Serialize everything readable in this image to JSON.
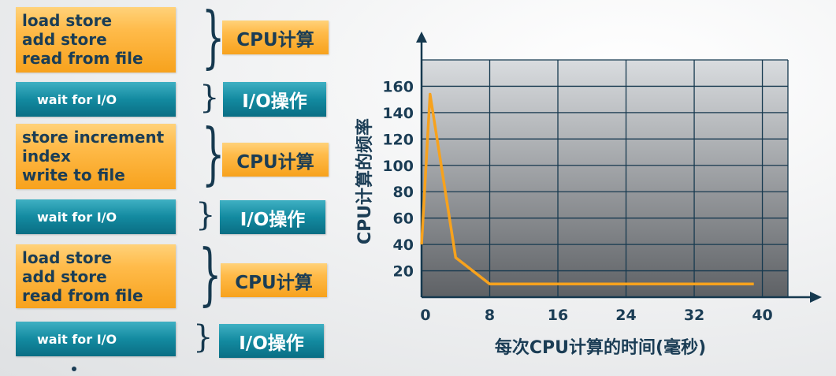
{
  "blocks": [
    {
      "kind": "cpu",
      "text": "load store\nadd store\nread from file",
      "tag": "CPU计算"
    },
    {
      "kind": "io",
      "text": "wait for I/O",
      "tag": "I/O操作"
    },
    {
      "kind": "cpu",
      "text": "store increment\nindex\nwrite to file",
      "tag": "CPU计算"
    },
    {
      "kind": "io",
      "text": "wait for I/O",
      "tag": "I/O操作"
    },
    {
      "kind": "cpu",
      "text": "load store\nadd store\nread from file",
      "tag": "CPU计算"
    },
    {
      "kind": "io",
      "text": "wait for I/O",
      "tag": "I/O操作"
    }
  ],
  "colors": {
    "orange": "#f7a21d",
    "teal": "#138aa0",
    "text_dark": "#1b3d55",
    "curve": "#f7a21d"
  },
  "chart_data": {
    "type": "line",
    "xlabel": "每次CPU计算的时间(毫秒)",
    "ylabel": "CPU计算的频率",
    "xticks": [
      0,
      8,
      16,
      24,
      32,
      40
    ],
    "yticks": [
      20,
      40,
      60,
      80,
      100,
      120,
      140,
      160
    ],
    "xlim": [
      0,
      43
    ],
    "ylim": [
      0,
      180
    ],
    "series": [
      {
        "x": [
          0,
          1,
          4,
          8,
          39
        ],
        "y": [
          40,
          154,
          30,
          10,
          10
        ]
      }
    ],
    "grid": true
  }
}
